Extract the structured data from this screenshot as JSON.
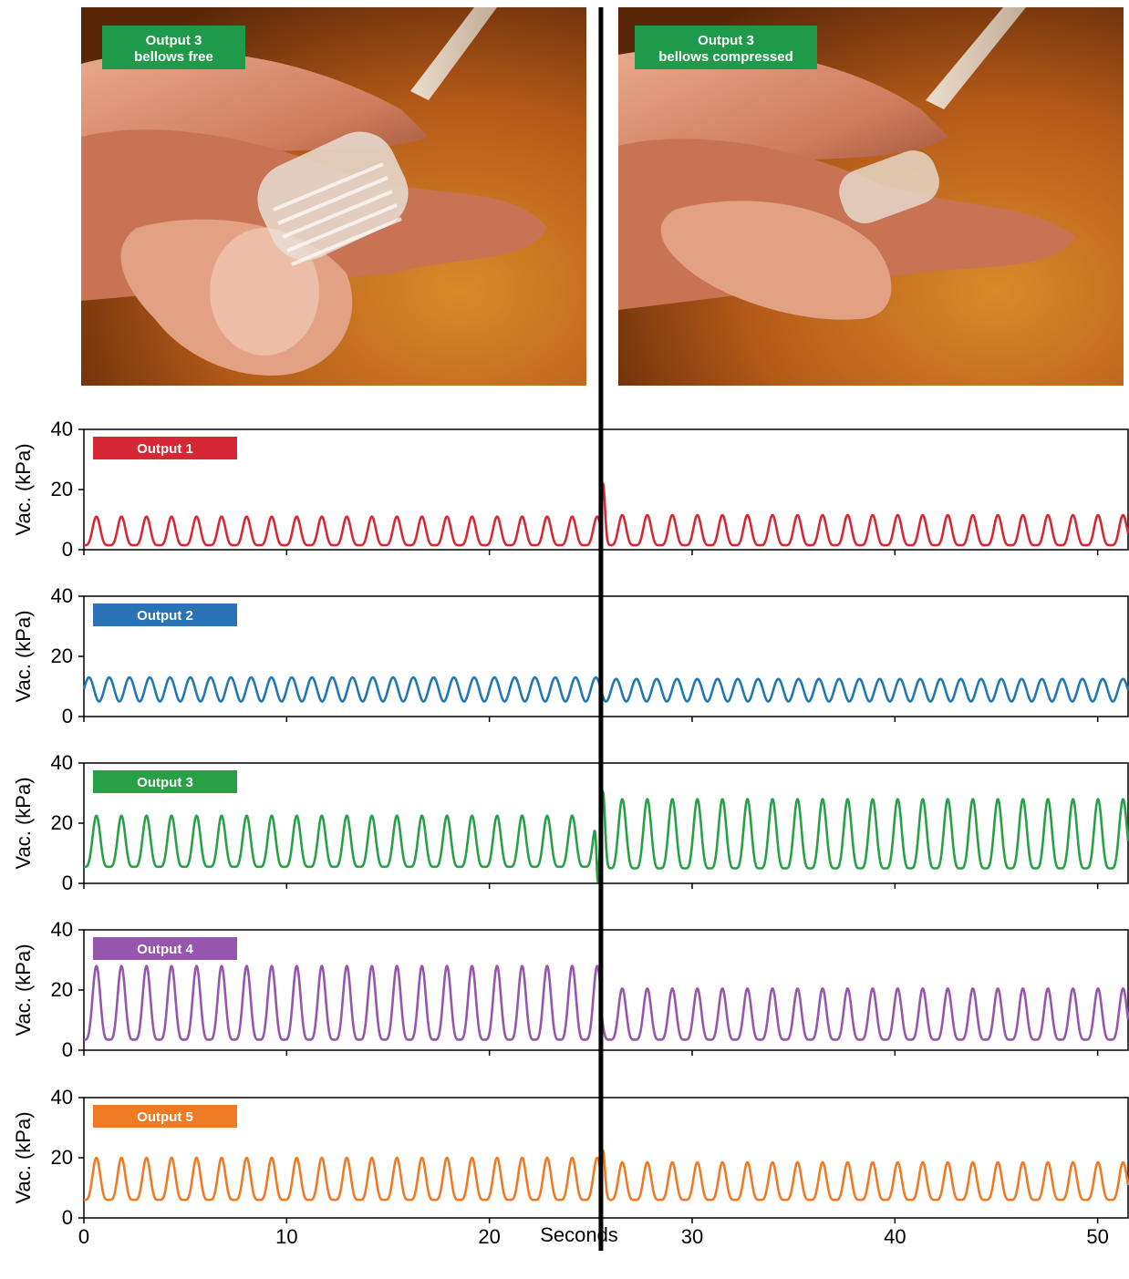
{
  "photos": [
    {
      "label_line1": "Output 3",
      "label_line2": "bellows free"
    },
    {
      "label_line1": "Output 3",
      "label_line2": "bellows compressed"
    }
  ],
  "colors": {
    "label_green": "#1f9a4a",
    "output1": "#d62834",
    "output2": "#2a73b6",
    "output3": "#27a046",
    "output4": "#9656ad",
    "output5": "#ef7a24",
    "output2_line": "#1f77b4",
    "divider": "#000000"
  },
  "chart_data": {
    "type": "line",
    "xlabel": "Seconds",
    "ylabel": "Vac. (kPa)",
    "xlim": [
      0,
      51.5
    ],
    "ylim": [
      0,
      40
    ],
    "x_ticks": [
      0,
      10,
      20,
      30,
      40,
      50
    ],
    "y_ticks": [
      0,
      20,
      40
    ],
    "event_time": 25.5,
    "grid": false,
    "series": [
      {
        "name": "Output 1",
        "period": 1.235,
        "phase": 0.0,
        "min_before": 1.5,
        "max_before": 11,
        "min_after": 1.5,
        "max_after": 11.5,
        "spike": 22,
        "shape": "sharp"
      },
      {
        "name": "Output 2",
        "period": 1.0,
        "phase": 0.0,
        "min_before": 5,
        "max_before": 13,
        "min_after": 5,
        "max_after": 12.5,
        "spike": null,
        "shape": "sine"
      },
      {
        "name": "Output 3",
        "period": 1.235,
        "phase": 0.0,
        "min_before": 5.5,
        "max_before": 22.5,
        "min_after": 5,
        "max_after": 28,
        "spike": 30.5,
        "dip": 0.5,
        "shape": "sharp"
      },
      {
        "name": "Output 4",
        "period": 1.235,
        "phase": 0.0,
        "min_before": 3.5,
        "max_before": 28,
        "min_after": 3.5,
        "max_after": 20.5,
        "spike": null,
        "shape": "sharp"
      },
      {
        "name": "Output 5",
        "period": 1.235,
        "phase": 0.0,
        "min_before": 6,
        "max_before": 20,
        "min_after": 6,
        "max_after": 18.5,
        "spike": 22.5,
        "shape": "sharp"
      }
    ]
  }
}
